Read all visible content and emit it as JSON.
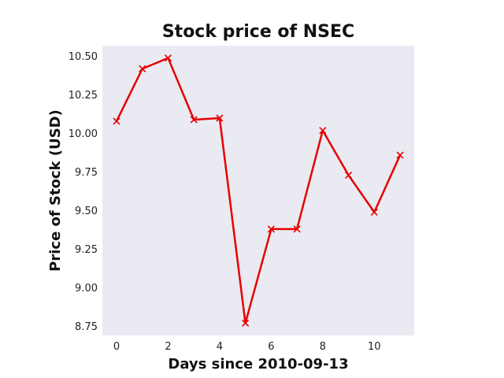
{
  "chart_data": {
    "type": "line",
    "title": "Stock price of NSEC",
    "xlabel": "Days since 2010-09-13",
    "ylabel": "Price of Stock (USD)",
    "x": [
      0,
      1,
      2,
      3,
      4,
      5,
      6,
      7,
      8,
      9,
      10,
      11
    ],
    "series": [
      {
        "values": [
          10.08,
          10.42,
          10.49,
          10.09,
          10.1,
          8.77,
          9.38,
          9.38,
          10.02,
          9.73,
          9.49,
          9.86
        ]
      }
    ],
    "xlim": [
      -0.55,
      11.55
    ],
    "ylim": [
      8.69,
      10.57
    ],
    "xticks": [
      0,
      2,
      4,
      6,
      8,
      10
    ],
    "xtick_labels": [
      "0",
      "2",
      "4",
      "6",
      "8",
      "10"
    ],
    "yticks": [
      8.75,
      9.0,
      9.25,
      9.5,
      9.75,
      10.0,
      10.25,
      10.5
    ],
    "ytick_labels": [
      "8.75",
      "9.00",
      "9.25",
      "9.50",
      "9.75",
      "10.00",
      "10.25",
      "10.50"
    ],
    "grid": false,
    "marker": "x",
    "colors": {
      "line": "#e60000",
      "plot_background": "#eaeaf2"
    }
  }
}
